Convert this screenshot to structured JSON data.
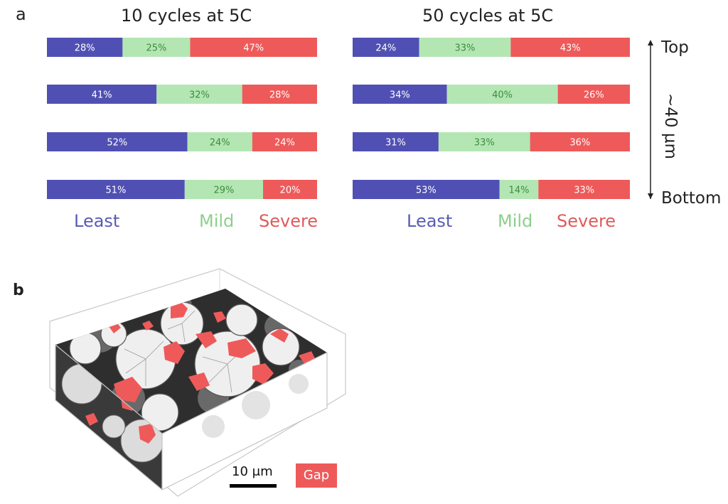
{
  "panel_a_letter": "a",
  "panel_b_letter": "b",
  "colors": {
    "least": "#5050b4",
    "mild": "#b4e6b4",
    "severe": "#ee5a5a",
    "least_text": "#5a5ab4",
    "mild_text": "#8cd08c",
    "severe_text": "#e05a5a",
    "mild_bar_text": "#3c8c3c"
  },
  "chart_data": [
    {
      "type": "bar",
      "orientation": "horizontal-stacked",
      "title": "10 cycles at 5C",
      "series": [
        {
          "name": "Least",
          "values": [
            28,
            41,
            52,
            51
          ],
          "labels": [
            "28%",
            "41%",
            "52%",
            "51%"
          ]
        },
        {
          "name": "Mild",
          "values": [
            25,
            32,
            24,
            29
          ],
          "labels": [
            "25%",
            "32%",
            "24%",
            "29%"
          ]
        },
        {
          "name": "Severe",
          "values": [
            47,
            28,
            24,
            20
          ],
          "labels": [
            "47%",
            "28%",
            "24%",
            "20%"
          ]
        }
      ],
      "legend": [
        "Least",
        "Mild",
        "Severe"
      ]
    },
    {
      "type": "bar",
      "orientation": "horizontal-stacked",
      "title": "50 cycles at 5C",
      "series": [
        {
          "name": "Least",
          "values": [
            24,
            34,
            31,
            53
          ],
          "labels": [
            "24%",
            "34%",
            "31%",
            "53%"
          ]
        },
        {
          "name": "Mild",
          "values": [
            33,
            40,
            33,
            14
          ],
          "labels": [
            "33%",
            "40%",
            "33%",
            "14%"
          ]
        },
        {
          "name": "Severe",
          "values": [
            43,
            26,
            36,
            33
          ],
          "labels": [
            "43%",
            "26%",
            "36%",
            "33%"
          ]
        }
      ],
      "legend": [
        "Least",
        "Mild",
        "Severe"
      ]
    }
  ],
  "depth_axis": {
    "top": "Top",
    "bottom": "Bottom",
    "span": "~40 μm"
  },
  "panel_b": {
    "scale_bar": "10 μm",
    "legend_gap": "Gap"
  }
}
